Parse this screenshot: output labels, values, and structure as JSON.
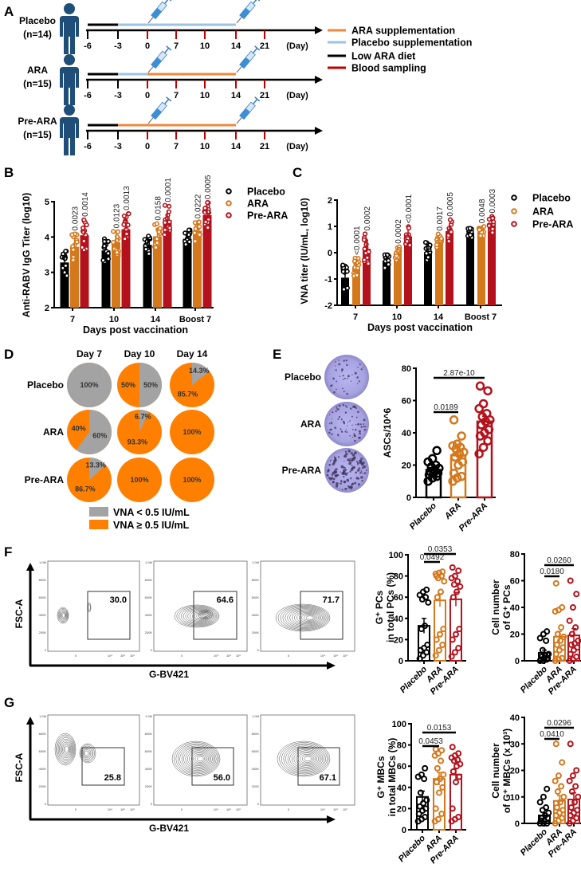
{
  "panel_labels": [
    "A",
    "B",
    "C",
    "D",
    "E",
    "F",
    "G"
  ],
  "colors": {
    "Placebo": "#000000",
    "ARA": "#d4781c",
    "Pre-ARA": "#b3121c",
    "ara_supp": "#f0883e",
    "placebo_supp": "#9cc3e6",
    "diet": "#000000",
    "blood": "#c00000",
    "vna_low": "#a3a3a3",
    "vna_high": "#ff8000",
    "person": "#1f4e79"
  },
  "panel_a": {
    "groups": [
      {
        "name": "Placebo",
        "n": "(n=14)",
        "regimen": [
          {
            "from": -6,
            "to": -3,
            "type": "diet"
          },
          {
            "from": -3,
            "to": 14,
            "type": "placebo_supp"
          }
        ]
      },
      {
        "name": "ARA",
        "n": "(n=15)",
        "regimen": [
          {
            "from": -6,
            "to": -3,
            "type": "diet"
          },
          {
            "from": -3,
            "to": 0,
            "type": "placebo_supp"
          },
          {
            "from": 0,
            "to": 14,
            "type": "ara_supp"
          }
        ]
      },
      {
        "name": "Pre-ARA",
        "n": "(n=15)",
        "regimen": [
          {
            "from": -6,
            "to": -3,
            "type": "diet"
          },
          {
            "from": -3,
            "to": 14,
            "type": "ara_supp"
          }
        ]
      }
    ],
    "days": [
      "-6",
      "-3",
      "0",
      "7",
      "10",
      "14",
      "21"
    ],
    "blood_sampling_days": [
      "0",
      "7",
      "10",
      "14",
      "21"
    ],
    "vaccination_days": [
      "0",
      "14"
    ],
    "unit": "(Day)",
    "legend": [
      {
        "label": "ARA supplementation",
        "type": "ara_supp"
      },
      {
        "label": "Placebo supplementation",
        "type": "placebo_supp"
      },
      {
        "label": "Low ARA diet",
        "type": "diet"
      },
      {
        "label": "Blood sampling",
        "type": "blood"
      }
    ]
  },
  "panel_e_plates": [
    "Placebo",
    "ARA",
    "Pre-ARA"
  ],
  "flow": {
    "ylabel": "FSC-A",
    "xlabel": "G-BV421",
    "y_ticks": [
      "1.0M",
      "800K",
      "600K",
      "400K",
      "200K",
      "0"
    ],
    "x_ticks": [
      "0",
      "10⁴",
      "10⁵",
      "10⁶"
    ],
    "f_gates": [
      "30.0",
      "64.6",
      "71.7"
    ],
    "g_gates": [
      "25.8",
      "56.0",
      "67.1"
    ]
  },
  "chart_data": [
    {
      "name": "anti-rabv-igg-chart",
      "type": "bar",
      "title": "",
      "xlabel": "Days post vaccination",
      "ylabel": "Anti-RABV IgG Titer (log10)",
      "categories": [
        "7",
        "10",
        "14",
        "Boost 7"
      ],
      "ylim": [
        2,
        5
      ],
      "yticks": [
        2,
        3,
        4,
        5
      ],
      "legend_position": "right",
      "series": [
        {
          "name": "Placebo",
          "n": 14,
          "mean": [
            3.28,
            3.62,
            3.78,
            3.95
          ],
          "sd": [
            0.25,
            0.22,
            0.2,
            0.18
          ]
        },
        {
          "name": "ARA",
          "n": 15,
          "mean": [
            3.72,
            3.85,
            4.02,
            4.18
          ],
          "sd": [
            0.28,
            0.26,
            0.24,
            0.2
          ]
        },
        {
          "name": "Pre-ARA",
          "n": 15,
          "mean": [
            4.05,
            4.22,
            4.48,
            4.62
          ],
          "sd": [
            0.33,
            0.3,
            0.28,
            0.26
          ]
        }
      ],
      "p_values": {
        "ARA": [
          "0.0023",
          "0.0123",
          "0.0158",
          "0.0222"
        ],
        "Pre-ARA": [
          "0.0014",
          "0.0013",
          "0.0001",
          "0.0005"
        ]
      }
    },
    {
      "name": "vna-titer-chart",
      "type": "bar",
      "title": "",
      "xlabel": "Days post vaccination",
      "ylabel": "VNA titer (IU/mL, log10)",
      "categories": [
        "7",
        "10",
        "14",
        "Boost 7"
      ],
      "ylim": [
        -2,
        2
      ],
      "yticks": [
        -2,
        -1,
        0,
        1,
        2
      ],
      "legend_position": "right",
      "series": [
        {
          "name": "Placebo",
          "n": 14,
          "mean": [
            -0.95,
            -0.3,
            0.02,
            0.75
          ],
          "sd": [
            0.35,
            0.2,
            0.25,
            0.12
          ]
        },
        {
          "name": "ARA",
          "n": 15,
          "mean": [
            -0.55,
            0.0,
            0.35,
            0.8
          ],
          "sd": [
            0.25,
            0.2,
            0.25,
            0.15
          ]
        },
        {
          "name": "Pre-ARA",
          "n": 15,
          "mean": [
            0.15,
            0.62,
            0.82,
            1.05
          ],
          "sd": [
            0.38,
            0.28,
            0.3,
            0.22
          ]
        }
      ],
      "p_values": {
        "ARA": [
          "<0.0001",
          "0.0002",
          "0.0017",
          "0.0048"
        ],
        "Pre-ARA": [
          "0.0002",
          "<0.0001",
          "0.0005",
          "0.0003"
        ]
      }
    },
    {
      "name": "vna-pie-charts",
      "type": "pie",
      "columns": [
        "Day 7",
        "Day 10",
        "Day 14"
      ],
      "rows": [
        "Placebo",
        "ARA",
        "Pre-ARA"
      ],
      "below_pct": [
        [
          100,
          50,
          14.3
        ],
        [
          60,
          6.7,
          0
        ],
        [
          13.3,
          0,
          0
        ]
      ],
      "labels": [
        [
          {
            "below": "100%",
            "above": null
          },
          {
            "below": "50%",
            "above": "50%"
          },
          {
            "below": "14.3%",
            "above": "85.7%"
          }
        ],
        [
          {
            "below": "60%",
            "above": "40%"
          },
          {
            "below": "6.7%",
            "above": "93.3%"
          },
          {
            "below": null,
            "above": "100%"
          }
        ],
        [
          {
            "below": "13.3%",
            "above": "86.7%"
          },
          {
            "below": null,
            "above": "100%"
          },
          {
            "below": null,
            "above": "100%"
          }
        ]
      ],
      "legend": [
        "VNA < 0.5 IU/mL",
        "VNA ≥ 0.5 IU/mL"
      ]
    },
    {
      "name": "asc-chart",
      "type": "bar",
      "ylabel": [
        "ASCs/10^6"
      ],
      "categories": [
        "Placebo",
        "ARA",
        "Pre-ARA"
      ],
      "ylim": [
        0,
        80
      ],
      "yticks": [
        0,
        20,
        40,
        60,
        80
      ],
      "means": [
        17,
        26,
        47
      ],
      "sem": [
        1.5,
        2.8,
        3.2
      ],
      "points": [
        [
          10,
          12,
          13,
          14,
          15,
          15,
          16,
          17,
          18,
          19,
          20,
          22,
          24,
          29
        ],
        [
          10,
          12,
          13,
          15,
          20,
          22,
          25,
          27,
          28,
          30,
          31,
          32,
          33,
          38,
          48
        ],
        [
          27,
          31,
          35,
          38,
          40,
          42,
          45,
          47,
          48,
          50,
          52,
          55,
          58,
          66,
          69
        ]
      ],
      "comparisons": [
        {
          "a": 0,
          "b": 1,
          "p": "0.0189"
        },
        {
          "a": 0,
          "b": 2,
          "p": "2.87e-10"
        }
      ]
    },
    {
      "name": "g-pcs-percent-chart",
      "type": "bar",
      "ylabel": [
        "G⁺ PCs",
        "in total PCs (%)"
      ],
      "categories": [
        "Placebo",
        "ARA",
        "Pre-ARA"
      ],
      "ylim": [
        0,
        100
      ],
      "yticks": [
        0,
        20,
        40,
        60,
        80,
        100
      ],
      "means": [
        33,
        57,
        58
      ],
      "sem": [
        7,
        6,
        6.5
      ],
      "points": [
        [
          2,
          5,
          8,
          10,
          12,
          15,
          30,
          33,
          55,
          58,
          60,
          62,
          65,
          67
        ],
        [
          5,
          10,
          15,
          20,
          25,
          30,
          60,
          65,
          75,
          78,
          80,
          82,
          83,
          84,
          80
        ],
        [
          4,
          8,
          12,
          20,
          25,
          30,
          60,
          65,
          70,
          72,
          75,
          78,
          80,
          85,
          88
        ]
      ],
      "comparisons": [
        {
          "a": 0,
          "b": 1,
          "p": "0.0492"
        },
        {
          "a": 0,
          "b": 2,
          "p": "0.0353"
        }
      ]
    },
    {
      "name": "g-pcs-count-chart",
      "type": "bar",
      "ylabel": [
        "Cell number",
        "of G⁺ PCs"
      ],
      "categories": [
        "Placebo",
        "ARA",
        "Pre-ARA"
      ],
      "ylim": [
        0,
        80
      ],
      "yticks": [
        0,
        20,
        40,
        60,
        80
      ],
      "means": [
        6,
        18,
        19
      ],
      "sem": [
        2,
        4,
        5
      ],
      "points": [
        [
          0,
          0,
          1,
          1,
          2,
          2,
          3,
          4,
          5,
          8,
          15,
          17,
          20,
          22
        ],
        [
          0,
          1,
          2,
          5,
          8,
          10,
          12,
          15,
          18,
          20,
          25,
          37,
          38,
          40,
          58
        ],
        [
          0,
          1,
          3,
          5,
          8,
          10,
          12,
          13,
          15,
          20,
          25,
          30,
          40,
          50,
          60
        ]
      ],
      "comparisons": [
        {
          "a": 0,
          "b": 1,
          "p": "0.0180"
        },
        {
          "a": 0,
          "b": 2,
          "p": "0.0260"
        }
      ]
    },
    {
      "name": "g-mbcs-percent-chart",
      "type": "bar",
      "ylabel": [
        "G⁺ MBCs",
        "in total MBCs (%)"
      ],
      "categories": [
        "Placebo",
        "ARA",
        "Pre-ARA"
      ],
      "ylim": [
        0,
        100
      ],
      "yticks": [
        0,
        20,
        40,
        60,
        80,
        100
      ],
      "means": [
        31,
        48,
        52
      ],
      "sem": [
        5.5,
        6,
        6
      ],
      "points": [
        [
          8,
          10,
          12,
          15,
          18,
          20,
          22,
          25,
          28,
          35,
          48,
          50,
          52,
          58
        ],
        [
          8,
          10,
          15,
          20,
          35,
          40,
          45,
          48,
          52,
          58,
          65,
          70,
          72,
          75,
          76
        ],
        [
          8,
          10,
          12,
          20,
          45,
          50,
          55,
          60,
          62,
          65,
          66,
          68,
          70,
          72,
          78
        ]
      ],
      "comparisons": [
        {
          "a": 0,
          "b": 1,
          "p": "0.0453"
        },
        {
          "a": 0,
          "b": 2,
          "p": "0.0153"
        }
      ]
    },
    {
      "name": "g-mbcs-count-chart",
      "type": "bar",
      "ylabel": [
        "Cell number",
        "of G⁺ MBCs (x 10³)"
      ],
      "categories": [
        "Placebo",
        "ARA",
        "Pre-ARA"
      ],
      "ylim": [
        0,
        40
      ],
      "yticks": [
        0,
        10,
        20,
        30,
        40
      ],
      "means": [
        3,
        8.5,
        9
      ],
      "sem": [
        1,
        2,
        2.5
      ],
      "points": [
        [
          0,
          0,
          0,
          1,
          1,
          2,
          2,
          3,
          4,
          5,
          6,
          8,
          10,
          13
        ],
        [
          0,
          1,
          2,
          3,
          4,
          5,
          6,
          8,
          10,
          12,
          14,
          16,
          18,
          23,
          30
        ],
        [
          0,
          1,
          2,
          3,
          4,
          5,
          6,
          8,
          10,
          12,
          14,
          16,
          18,
          20,
          30
        ]
      ],
      "comparisons": [
        {
          "a": 0,
          "b": 1,
          "p": "0.0410"
        },
        {
          "a": 0,
          "b": 2,
          "p": "0.0296"
        }
      ]
    }
  ]
}
